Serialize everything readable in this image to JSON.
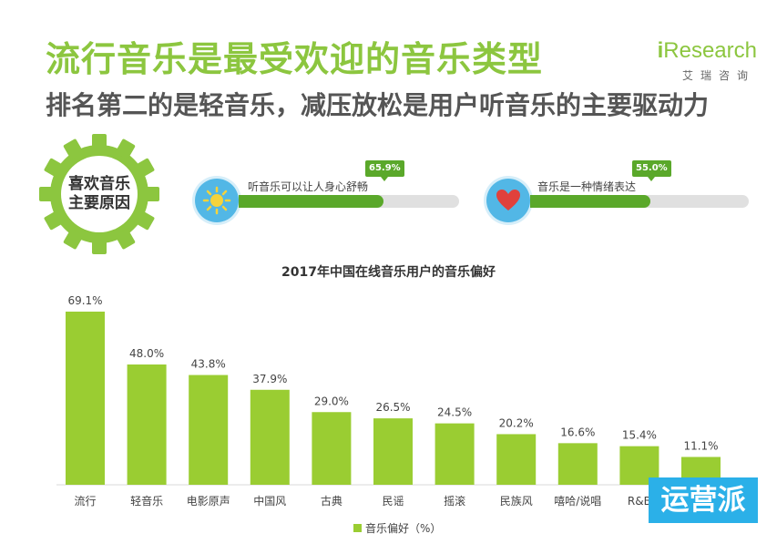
{
  "header": {
    "title": "流行音乐是最受欢迎的音乐类型",
    "subtitle": "排名第二的是轻音乐，减压放松是用户听音乐的主要驱动力"
  },
  "logo": {
    "prefix": "i",
    "name": "Research",
    "cn": "艾瑞咨询"
  },
  "gear": {
    "line1": "喜欢音乐",
    "line2": "主要原因"
  },
  "reasons": [
    {
      "icon": "sun-icon",
      "text": "听音乐可以让人身心舒畅",
      "value": 65.9,
      "label": "65.9%"
    },
    {
      "icon": "heart-icon",
      "text": "音乐是一种情绪表达",
      "value": 55.0,
      "label": "55.0%"
    }
  ],
  "chart_data": {
    "type": "bar",
    "title": "2017年中国在线音乐用户的音乐偏好",
    "categories": [
      "流行",
      "轻音乐",
      "电影原声",
      "中国风",
      "古典",
      "民谣",
      "摇滚",
      "民族风",
      "嘻哈/说唱",
      "R&B",
      ""
    ],
    "series": [
      {
        "name": "音乐偏好（%）",
        "values": [
          69.1,
          48.0,
          43.8,
          37.9,
          29.0,
          26.5,
          24.5,
          20.2,
          16.6,
          15.4,
          11.1
        ]
      }
    ],
    "value_labels": [
      "69.1%",
      "48.0%",
      "43.8%",
      "37.9%",
      "29.0%",
      "26.5%",
      "24.5%",
      "20.2%",
      "16.6%",
      "15.4%",
      "11.1%"
    ],
    "ylim": [
      0,
      80
    ],
    "grid": false,
    "legend": "bottom",
    "bar_color": "#9acd32"
  },
  "watermark": {
    "text": "运营派"
  },
  "colors": {
    "accent": "#8cc63f",
    "bar": "#9acd32",
    "badge": "#5aa82a",
    "icon_bg": "#52b7e6",
    "watermark": "#2bb0e8"
  }
}
